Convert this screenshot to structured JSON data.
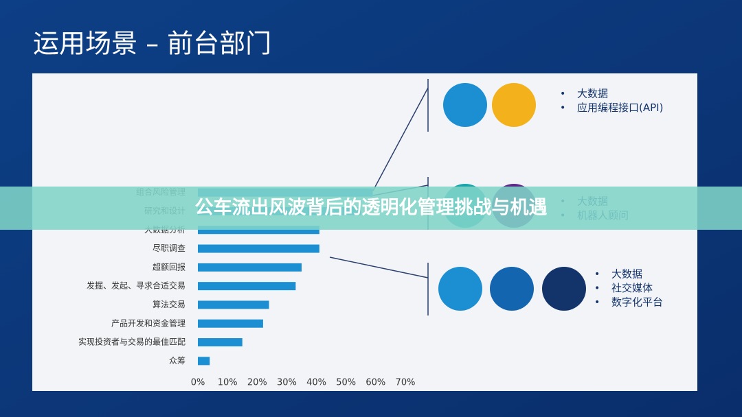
{
  "slide_title": "运用场景 – 前台部门",
  "banner": "公车流出风波背后的透明化管理挑战与机遇",
  "groups": [
    {
      "items": [
        "大数据",
        "应用编程接口(API)"
      ]
    },
    {
      "items": [
        "大数据",
        "机器人顾问"
      ]
    },
    {
      "items": [
        "大数据",
        "社交媒体",
        "数字化平台"
      ]
    }
  ],
  "chart_data": {
    "type": "hbar",
    "categories": [
      "组合风险管理",
      "研究和设计",
      "大数据分析",
      "尽职调查",
      "超额回报",
      "发掘、发起、寻求合适交易",
      "算法交易",
      "产品开发和资金管理",
      "实现投资者与交易的最佳匹配",
      "众筹"
    ],
    "values": [
      59,
      55,
      41,
      41,
      35,
      33,
      24,
      22,
      15,
      4
    ],
    "color": "#1b8fd2",
    "xlim": [
      0,
      70
    ],
    "xticks": [
      {
        "value": 0,
        "label": "0%"
      },
      {
        "value": 10,
        "label": "10%"
      },
      {
        "value": 20,
        "label": "20%"
      },
      {
        "value": 30,
        "label": "30%"
      },
      {
        "value": 40,
        "label": "40%"
      },
      {
        "value": 50,
        "label": "50%"
      },
      {
        "value": 60,
        "label": "60%"
      },
      {
        "value": 70,
        "label": "70%"
      }
    ]
  }
}
